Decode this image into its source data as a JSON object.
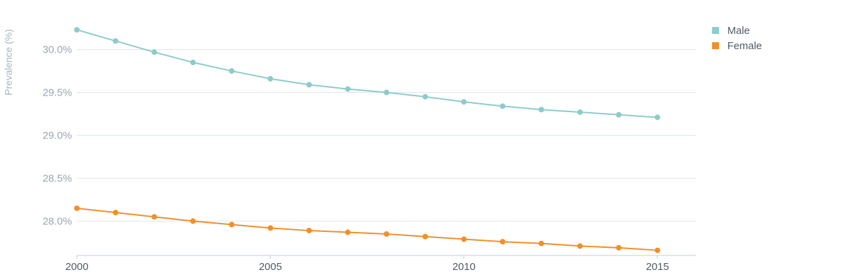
{
  "chart_data": {
    "type": "line",
    "title": "",
    "xlabel": "",
    "ylabel": "Prevalence (%)",
    "x": [
      2000,
      2001,
      2002,
      2003,
      2004,
      2005,
      2006,
      2007,
      2008,
      2009,
      2010,
      2011,
      2012,
      2013,
      2014,
      2015
    ],
    "xticks": [
      {
        "value": 2000,
        "label": "2000"
      },
      {
        "value": 2005,
        "label": "2005"
      },
      {
        "value": 2010,
        "label": "2010"
      },
      {
        "value": 2015,
        "label": "2015"
      }
    ],
    "yticks": [
      {
        "value": 28.0,
        "label": "28.0%"
      },
      {
        "value": 28.5,
        "label": "28.5%"
      },
      {
        "value": 29.0,
        "label": "29.0%"
      },
      {
        "value": 29.5,
        "label": "29.5%"
      },
      {
        "value": 30.0,
        "label": "30.0%"
      }
    ],
    "xlim": [
      2000,
      2016
    ],
    "ylim": [
      27.6,
      30.4
    ],
    "grid": "horizontal",
    "legend_position": "top-right",
    "series": [
      {
        "name": "Male",
        "color": "#8ccccb",
        "values": [
          30.23,
          30.1,
          29.97,
          29.85,
          29.75,
          29.66,
          29.59,
          29.54,
          29.5,
          29.45,
          29.39,
          29.34,
          29.3,
          29.27,
          29.24,
          29.21
        ]
      },
      {
        "name": "Female",
        "color": "#f18f2b",
        "values": [
          28.15,
          28.1,
          28.05,
          28.0,
          27.96,
          27.92,
          27.89,
          27.87,
          27.85,
          27.82,
          27.79,
          27.76,
          27.74,
          27.71,
          27.69,
          27.66
        ]
      }
    ]
  }
}
